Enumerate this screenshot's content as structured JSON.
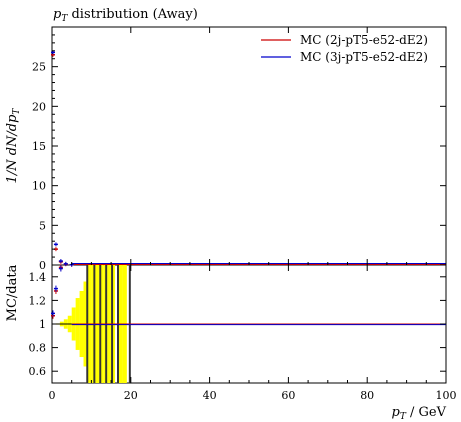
{
  "chart_data": {
    "type": "line",
    "title": "p_T distribution (Away)",
    "title_parts": {
      "main": "p",
      "sub": "T",
      "rest": " distribution (Away)"
    },
    "ylabel_top": "1/N dN/dp_T",
    "ylabel_bottom": "MC/data",
    "xlabel": "p_T / GeV",
    "xlabel_parts": {
      "main": "p",
      "sub": "T",
      "rest": "  / GeV"
    },
    "xlim": [
      0,
      100
    ],
    "ylim_top": [
      0,
      30
    ],
    "ylim_bottom": [
      0.5,
      1.5
    ],
    "x_ticks": [
      0,
      20,
      40,
      60,
      80,
      100
    ],
    "y_ticks_top": [
      0,
      5,
      10,
      15,
      20,
      25
    ],
    "y_ticks_bottom": [
      0.6,
      0.8,
      1,
      1.2,
      1.4
    ],
    "legend_position": "top-right",
    "series": [
      {
        "name": "MC (2j-pT5-e52-dE2)",
        "color": "#cc0000",
        "points": [
          {
            "x": 0.25,
            "y": 26.5
          },
          {
            "x": 1.0,
            "y": 2.0
          },
          {
            "x": 2.25,
            "y": 0.4
          },
          {
            "x": 3.5,
            "y": 0.1
          },
          {
            "x": 5.0,
            "y": 0.03
          }
        ]
      },
      {
        "name": "MC (3j-pT5-e52-dE2)",
        "color": "#0000cc",
        "points": [
          {
            "x": 0.25,
            "y": 26.8
          },
          {
            "x": 1.0,
            "y": 2.6
          },
          {
            "x": 2.25,
            "y": 0.5
          },
          {
            "x": 3.5,
            "y": 0.15
          },
          {
            "x": 5.0,
            "y": 0.04
          }
        ]
      }
    ],
    "ratio_series": [
      {
        "name": "MC (2j-pT5-e52-dE2)",
        "points": [
          {
            "x": 0.25,
            "y": 1.07
          },
          {
            "x": 1.0,
            "y": 1.28
          },
          {
            "x": 2.25,
            "y": 1.48
          }
        ]
      },
      {
        "name": "MC (3j-pT5-e52-dE2)",
        "points": [
          {
            "x": 0.25,
            "y": 1.09
          },
          {
            "x": 1.0,
            "y": 1.3
          },
          {
            "x": 2.25,
            "y": 1.47
          }
        ]
      }
    ],
    "ratio_flat_value": 1,
    "data_uncertainty_band": {
      "color": "#ffff00",
      "bins": [
        {
          "x0": 1,
          "x1": 2,
          "lo": 0.995,
          "hi": 1.005
        },
        {
          "x0": 2,
          "x1": 3,
          "lo": 0.98,
          "hi": 1.02
        },
        {
          "x0": 3,
          "x1": 4,
          "lo": 0.96,
          "hi": 1.04
        },
        {
          "x0": 4,
          "x1": 5,
          "lo": 0.93,
          "hi": 1.07
        },
        {
          "x0": 5,
          "x1": 6,
          "lo": 0.86,
          "hi": 1.14
        },
        {
          "x0": 6,
          "x1": 7,
          "lo": 0.78,
          "hi": 1.22
        },
        {
          "x0": 7,
          "x1": 8,
          "lo": 0.72,
          "hi": 1.28
        },
        {
          "x0": 8,
          "x1": 9,
          "lo": 0.64,
          "hi": 1.36
        },
        {
          "x0": 9,
          "x1": 10,
          "lo": 0.5,
          "hi": 1.5
        },
        {
          "x0": 10,
          "x1": 11,
          "lo": 0.5,
          "hi": 1.5
        },
        {
          "x0": 11,
          "x1": 12,
          "lo": 0.5,
          "hi": 1.5
        },
        {
          "x0": 12,
          "x1": 13,
          "lo": 0.5,
          "hi": 1.5
        },
        {
          "x0": 13,
          "x1": 14,
          "lo": 0.5,
          "hi": 1.5
        },
        {
          "x0": 14,
          "x1": 15,
          "lo": 0.5,
          "hi": 1.5
        },
        {
          "x0": 15,
          "x1": 16,
          "lo": 0.5,
          "hi": 1.5
        },
        {
          "x0": 17,
          "x1": 18,
          "lo": 0.5,
          "hi": 1.5
        },
        {
          "x0": 18,
          "x1": 19,
          "lo": 0.5,
          "hi": 1.5
        }
      ],
      "dark_bins": [
        {
          "x0": 8.7,
          "x1": 9.2
        },
        {
          "x0": 10.5,
          "x1": 11.0
        },
        {
          "x0": 12.0,
          "x1": 12.5
        },
        {
          "x0": 13.5,
          "x1": 14.0
        },
        {
          "x0": 15.0,
          "x1": 15.5
        },
        {
          "x0": 16.5,
          "x1": 17.0
        },
        {
          "x0": 19.5,
          "x1": 20.0
        }
      ]
    }
  }
}
